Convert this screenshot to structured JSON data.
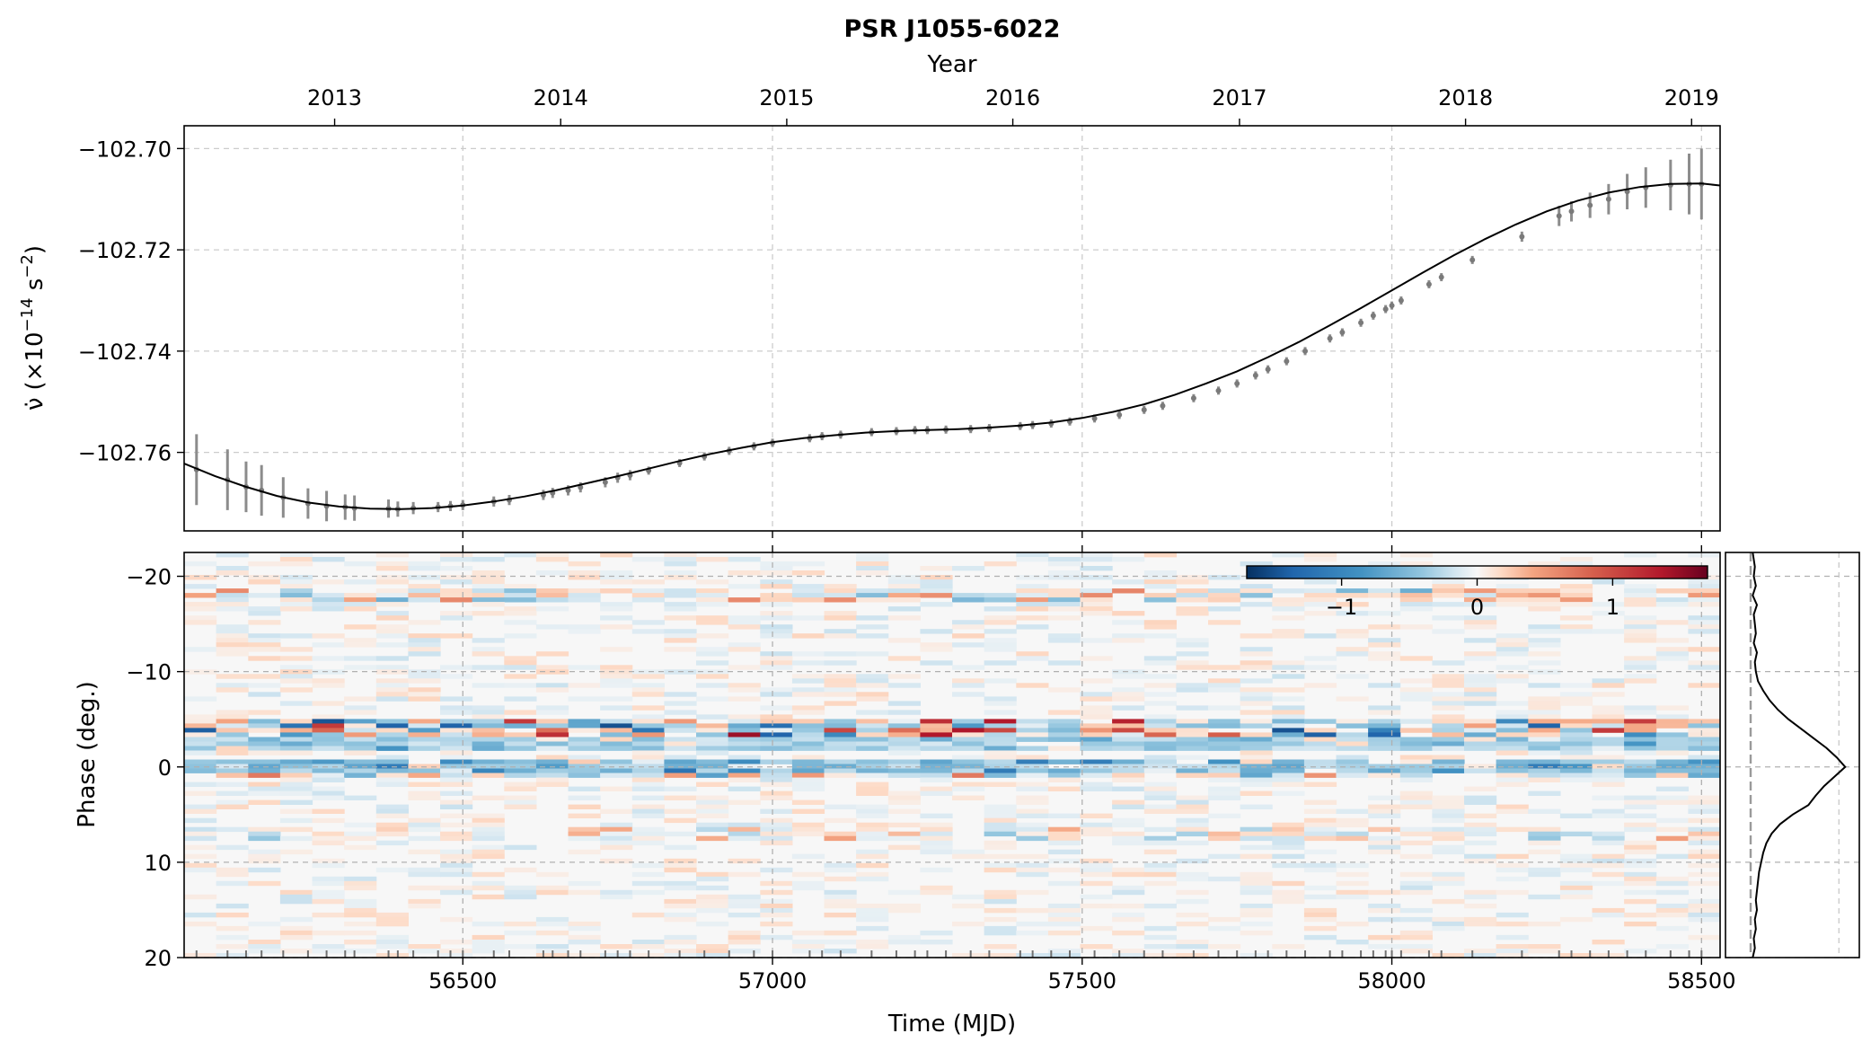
{
  "figure": {
    "title": "PSR J1055-6022"
  },
  "chart_data": [
    {
      "id": "nudot",
      "type": "line",
      "title": "PSR J1055-6022",
      "xlabel": "Time (MJD)",
      "secondary_xlabel": "Year",
      "ylabel_symbol": "ν̇",
      "ylabel_unit_prefix": "(×10",
      "ylabel_unit_exp": "−14",
      "ylabel_unit_mid": " s",
      "ylabel_unit_exp2": "−2",
      "ylabel_unit_suffix": ")",
      "xlim": [
        56050,
        58530
      ],
      "ylim": [
        -102.7755,
        -102.6955
      ],
      "x_ticks": [
        56500,
        57000,
        57500,
        58000,
        58500
      ],
      "x_tick_labels": [
        "56500",
        "57000",
        "57500",
        "58000",
        "58500"
      ],
      "year_ticks": [
        56293,
        56658,
        57023,
        57388,
        57754,
        58119,
        58484
      ],
      "year_tick_labels": [
        "2013",
        "2014",
        "2015",
        "2016",
        "2017",
        "2018",
        "2019"
      ],
      "y_ticks": [
        -102.7,
        -102.72,
        -102.74,
        -102.76
      ],
      "y_tick_labels": [
        "−102.70",
        "−102.72",
        "−102.74",
        "−102.76"
      ],
      "grid": true,
      "series": [
        {
          "kind": "model-curve",
          "x": [
            56050,
            56100,
            56150,
            56200,
            56250,
            56300,
            56350,
            56400,
            56450,
            56500,
            56550,
            56600,
            56650,
            56700,
            56750,
            56800,
            56850,
            56900,
            56950,
            57000,
            57050,
            57100,
            57150,
            57200,
            57250,
            57300,
            57350,
            57400,
            57450,
            57500,
            57550,
            57600,
            57650,
            57700,
            57750,
            57800,
            57850,
            57900,
            57950,
            58000,
            58050,
            58100,
            58150,
            58200,
            58250,
            58300,
            58350,
            58400,
            58450,
            58500,
            58530
          ],
          "y": [
            -102.7622,
            -102.7647,
            -102.7668,
            -102.7686,
            -102.7699,
            -102.7707,
            -102.7711,
            -102.7712,
            -102.771,
            -102.7705,
            -102.7697,
            -102.7687,
            -102.7675,
            -102.7661,
            -102.7647,
            -102.7632,
            -102.7617,
            -102.7603,
            -102.7591,
            -102.758,
            -102.7572,
            -102.7566,
            -102.7561,
            -102.7558,
            -102.7556,
            -102.7554,
            -102.7551,
            -102.7547,
            -102.7541,
            -102.7532,
            -102.752,
            -102.7505,
            -102.7486,
            -102.7464,
            -102.744,
            -102.7412,
            -102.7382,
            -102.7349,
            -102.7315,
            -102.728,
            -102.7245,
            -102.7211,
            -102.7179,
            -102.715,
            -102.7124,
            -102.7103,
            -102.7087,
            -102.7076,
            -102.707,
            -102.7069,
            -102.7073
          ]
        },
        {
          "kind": "measurements",
          "x": [
            56070,
            56120,
            56150,
            56175,
            56210,
            56250,
            56280,
            56310,
            56325,
            56380,
            56395,
            56420,
            56460,
            56480,
            56500,
            56550,
            56575,
            56630,
            56645,
            56670,
            56690,
            56730,
            56750,
            56770,
            56800,
            56850,
            56890,
            56930,
            56970,
            57000,
            57060,
            57080,
            57110,
            57160,
            57200,
            57230,
            57250,
            57280,
            57320,
            57350,
            57400,
            57420,
            57450,
            57480,
            57520,
            57560,
            57600,
            57630,
            57680,
            57720,
            57750,
            57780,
            57800,
            57830,
            57860,
            57900,
            57920,
            57950,
            57970,
            57990,
            58000,
            58015,
            58060,
            58080,
            58130,
            58210,
            58270,
            58290,
            58320,
            58350,
            58380,
            58410,
            58450,
            58480,
            58500
          ],
          "y": [
            -102.7634,
            -102.7654,
            -102.7668,
            -102.7675,
            -102.7689,
            -102.7701,
            -102.7706,
            -102.7708,
            -102.771,
            -102.7711,
            -102.7712,
            -102.771,
            -102.7708,
            -102.7706,
            -102.7704,
            -102.7697,
            -102.7694,
            -102.7684,
            -102.768,
            -102.7675,
            -102.7669,
            -102.7659,
            -102.765,
            -102.7645,
            -102.7636,
            -102.7621,
            -102.7608,
            -102.7597,
            -102.7588,
            -102.7581,
            -102.7572,
            -102.7568,
            -102.7565,
            -102.756,
            -102.7558,
            -102.7556,
            -102.7556,
            -102.7555,
            -102.7554,
            -102.7552,
            -102.7548,
            -102.7546,
            -102.7543,
            -102.7539,
            -102.7533,
            -102.7526,
            -102.7516,
            -102.7508,
            -102.7493,
            -102.7478,
            -102.7464,
            -102.7448,
            -102.7436,
            -102.742,
            -102.74,
            -102.7375,
            -102.7363,
            -102.7344,
            -102.733,
            -102.7317,
            -102.731,
            -102.73,
            -102.7268,
            -102.7254,
            -102.722,
            -102.7174,
            -102.7133,
            -102.7124,
            -102.7112,
            -102.71,
            -102.7085,
            -102.7077,
            -102.7072,
            -102.707,
            -102.707
          ],
          "err": [
            0.007,
            0.006,
            0.005,
            0.005,
            0.004,
            0.003,
            0.003,
            0.0025,
            0.0025,
            0.0018,
            0.0015,
            0.0012,
            0.001,
            0.001,
            0.001,
            0.001,
            0.001,
            0.001,
            0.001,
            0.001,
            0.001,
            0.001,
            0.001,
            0.001,
            0.0008,
            0.0008,
            0.0008,
            0.0008,
            0.0008,
            0.0008,
            0.0008,
            0.0008,
            0.0008,
            0.0008,
            0.0008,
            0.0008,
            0.0008,
            0.0008,
            0.0008,
            0.0008,
            0.0008,
            0.0008,
            0.0008,
            0.0008,
            0.0008,
            0.0008,
            0.0008,
            0.0008,
            0.0008,
            0.0008,
            0.0008,
            0.0008,
            0.0008,
            0.0008,
            0.0008,
            0.0008,
            0.0008,
            0.0008,
            0.0008,
            0.0008,
            0.0008,
            0.0008,
            0.0008,
            0.0008,
            0.0008,
            0.001,
            0.002,
            0.002,
            0.0025,
            0.003,
            0.0035,
            0.004,
            0.005,
            0.006,
            0.007
          ]
        }
      ]
    },
    {
      "id": "residual-heatmap",
      "type": "heatmap",
      "xlabel": "Time (MJD)",
      "ylabel": "Phase (deg.)",
      "xlim": [
        56050,
        58530
      ],
      "ylim": [
        20,
        -22.5
      ],
      "y_ticks": [
        -20,
        -10,
        0,
        10,
        20
      ],
      "y_tick_labels": [
        "−20",
        "−10",
        "0",
        "10",
        "20"
      ],
      "x_ticks": [
        56500,
        57000,
        57500,
        58000,
        58500
      ],
      "x_tick_labels": [
        "56500",
        "57000",
        "57500",
        "58000",
        "58500"
      ],
      "colormap": "RdBu_r",
      "color_range": [
        -1.7,
        1.7
      ],
      "colorbar_ticks": [
        -1,
        0,
        1
      ],
      "colorbar_tick_labels": [
        "−1",
        "0",
        "1"
      ],
      "colorbar_placement": "top-right",
      "notable_features": [
        {
          "phase": -4.2,
          "description": "alternating red/blue band",
          "strength": 1.4
        },
        {
          "phase": -2.5,
          "description": "light blue band",
          "strength": -0.5
        },
        {
          "phase": 0,
          "description": "persistent blue band",
          "strength": -0.7
        },
        {
          "phase": -18,
          "description": "faint alternating band",
          "strength": 0.6
        },
        {
          "phase": 7,
          "description": "faint red band",
          "strength": 0.45
        }
      ],
      "observation_epochs": [
        56070,
        56120,
        56150,
        56175,
        56210,
        56250,
        56280,
        56310,
        56325,
        56380,
        56395,
        56420,
        56460,
        56480,
        56500,
        56550,
        56575,
        56630,
        56645,
        56670,
        56690,
        56730,
        56750,
        56770,
        56800,
        56850,
        56890,
        56930,
        56970,
        57000,
        57060,
        57080,
        57110,
        57160,
        57200,
        57230,
        57250,
        57280,
        57320,
        57350,
        57400,
        57420,
        57450,
        57480,
        57520,
        57560,
        57600,
        57630,
        57680,
        57720,
        57750,
        57780,
        57800,
        57830,
        57860,
        57900,
        57920,
        57950,
        57970,
        57990,
        58000,
        58015,
        58060,
        58080,
        58130,
        58210,
        58270,
        58290,
        58320,
        58350,
        58380,
        58410,
        58450,
        58480,
        58500
      ]
    },
    {
      "id": "mean-profile",
      "type": "line",
      "orientation": "vertical",
      "ylim": [
        20,
        -22.5
      ],
      "grid": true,
      "series": [
        {
          "kind": "profile",
          "phase": [
            -22.5,
            -21,
            -20,
            -19,
            -18,
            -17,
            -16,
            -15,
            -14,
            -13,
            -12,
            -11,
            -10,
            -9,
            -8,
            -7,
            -6,
            -5,
            -4,
            -3,
            -2,
            -1,
            0,
            1,
            2,
            3,
            4,
            5,
            6,
            7,
            8,
            9,
            10,
            11,
            12,
            13,
            14,
            15,
            16,
            17,
            18,
            19,
            20
          ],
          "intensity": [
            0.02,
            0.04,
            0.03,
            0.05,
            0.02,
            0.06,
            0.03,
            0.04,
            0.05,
            0.03,
            0.06,
            0.04,
            0.05,
            0.07,
            0.12,
            0.18,
            0.26,
            0.36,
            0.48,
            0.6,
            0.72,
            0.82,
            0.9,
            0.8,
            0.7,
            0.62,
            0.55,
            0.4,
            0.28,
            0.2,
            0.15,
            0.12,
            0.1,
            0.08,
            0.07,
            0.06,
            0.05,
            0.06,
            0.04,
            0.05,
            0.03,
            0.04,
            0.02
          ]
        }
      ],
      "dashed_vlines": [
        0.0,
        0.84
      ]
    }
  ]
}
